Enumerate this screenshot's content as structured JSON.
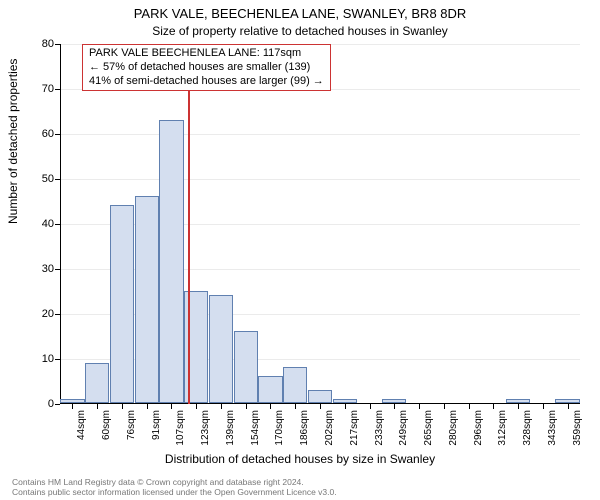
{
  "title_main": "PARK VALE, BEECHENLEA LANE, SWANLEY, BR8 8DR",
  "title_sub": "Size of property relative to detached houses in Swanley",
  "callout": {
    "line1": "PARK VALE BEECHENLEA LANE: 117sqm",
    "line2": "← 57% of detached houses are smaller (139)",
    "line3": "41% of semi-detached houses are larger (99) →"
  },
  "y_axis": {
    "title": "Number of detached properties",
    "min": 0,
    "max": 80,
    "tick_step": 10,
    "ticks": [
      0,
      10,
      20,
      30,
      40,
      50,
      60,
      70,
      80
    ]
  },
  "x_axis": {
    "title": "Distribution of detached houses by size in Swanley",
    "labels": [
      "44sqm",
      "60sqm",
      "76sqm",
      "91sqm",
      "107sqm",
      "123sqm",
      "139sqm",
      "154sqm",
      "170sqm",
      "186sqm",
      "202sqm",
      "217sqm",
      "233sqm",
      "249sqm",
      "265sqm",
      "280sqm",
      "296sqm",
      "312sqm",
      "328sqm",
      "343sqm",
      "359sqm"
    ]
  },
  "bars": {
    "values": [
      1,
      9,
      44,
      46,
      63,
      25,
      24,
      16,
      6,
      8,
      3,
      1,
      0,
      1,
      0,
      0,
      0,
      0,
      1,
      0,
      1
    ],
    "fill_color": "#d4deef",
    "border_color": "#6080b0",
    "width_fraction": 0.98
  },
  "marker": {
    "position_index": 4.65,
    "color": "#cc3333"
  },
  "plot": {
    "background": "#ffffff",
    "grid_color": "#000000",
    "grid_opacity": 0.08
  },
  "footer": {
    "line1": "Contains HM Land Registry data © Crown copyright and database right 2024.",
    "line2": "Contains public sector information licensed under the Open Government Licence v3.0."
  },
  "fonts": {
    "title_main_size": 13,
    "title_sub_size": 12,
    "axis_title_size": 12,
    "tick_label_size": 11,
    "x_tick_label_size": 10,
    "callout_size": 11,
    "footer_size": 8.5
  }
}
